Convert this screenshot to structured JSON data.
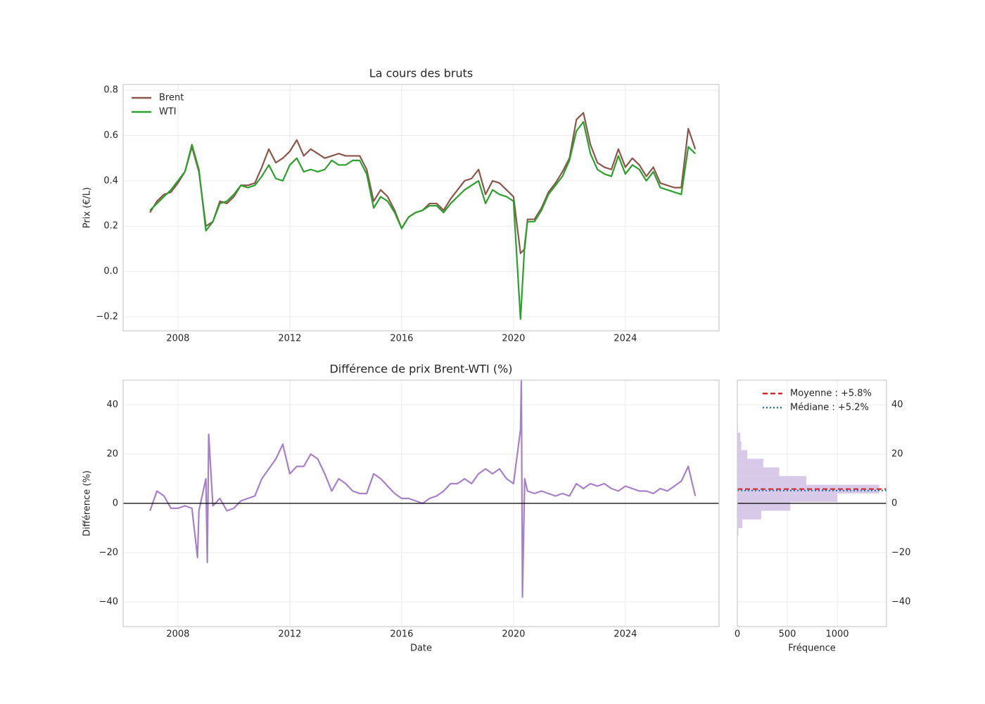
{
  "chart_data": [
    {
      "type": "line",
      "title": "La cours des bruts",
      "ylabel": "Prix (€/L)",
      "x": [
        2007,
        2007.25,
        2007.5,
        2007.75,
        2008,
        2008.25,
        2008.5,
        2008.75,
        2009,
        2009.25,
        2009.5,
        2009.75,
        2010,
        2010.25,
        2010.5,
        2010.75,
        2011,
        2011.25,
        2011.5,
        2011.75,
        2012,
        2012.25,
        2012.5,
        2012.75,
        2013,
        2013.25,
        2013.5,
        2013.75,
        2014,
        2014.25,
        2014.5,
        2014.75,
        2015,
        2015.25,
        2015.5,
        2015.75,
        2016,
        2016.25,
        2016.5,
        2016.75,
        2017,
        2017.25,
        2017.5,
        2017.75,
        2018,
        2018.25,
        2018.5,
        2018.75,
        2019,
        2019.25,
        2019.5,
        2019.75,
        2020,
        2020.25,
        2020.4,
        2020.5,
        2020.75,
        2021,
        2021.25,
        2021.5,
        2021.75,
        2022,
        2022.25,
        2022.5,
        2022.75,
        2023,
        2023.25,
        2023.5,
        2023.75,
        2024,
        2024.25,
        2024.5,
        2024.75,
        2025,
        2025.25,
        2025.5,
        2025.75,
        2026,
        2026.25,
        2026.5
      ],
      "series": [
        {
          "name": "Brent",
          "color": "#8c564b",
          "values": [
            0.26,
            0.31,
            0.34,
            0.35,
            0.39,
            0.44,
            0.55,
            0.44,
            0.2,
            0.22,
            0.31,
            0.3,
            0.33,
            0.38,
            0.38,
            0.39,
            0.46,
            0.54,
            0.48,
            0.5,
            0.53,
            0.58,
            0.51,
            0.54,
            0.52,
            0.5,
            0.51,
            0.52,
            0.51,
            0.51,
            0.51,
            0.45,
            0.31,
            0.36,
            0.33,
            0.27,
            0.19,
            0.24,
            0.26,
            0.27,
            0.3,
            0.3,
            0.27,
            0.32,
            0.36,
            0.4,
            0.41,
            0.45,
            0.34,
            0.4,
            0.39,
            0.36,
            0.33,
            0.08,
            0.1,
            0.23,
            0.23,
            0.28,
            0.35,
            0.39,
            0.44,
            0.5,
            0.67,
            0.7,
            0.56,
            0.48,
            0.46,
            0.45,
            0.54,
            0.46,
            0.5,
            0.47,
            0.42,
            0.46,
            0.39,
            0.38,
            0.37,
            0.37,
            0.63,
            0.54
          ]
        },
        {
          "name": "WTI",
          "color": "#2ca02c",
          "values": [
            0.27,
            0.3,
            0.33,
            0.36,
            0.4,
            0.44,
            0.56,
            0.45,
            0.18,
            0.22,
            0.3,
            0.31,
            0.34,
            0.38,
            0.37,
            0.38,
            0.42,
            0.47,
            0.41,
            0.4,
            0.47,
            0.5,
            0.44,
            0.45,
            0.44,
            0.45,
            0.49,
            0.47,
            0.47,
            0.49,
            0.49,
            0.43,
            0.28,
            0.33,
            0.31,
            0.26,
            0.19,
            0.24,
            0.26,
            0.27,
            0.29,
            0.29,
            0.26,
            0.3,
            0.33,
            0.36,
            0.38,
            0.4,
            0.3,
            0.36,
            0.34,
            0.33,
            0.31,
            -0.21,
            0.12,
            0.22,
            0.22,
            0.27,
            0.34,
            0.38,
            0.42,
            0.49,
            0.62,
            0.66,
            0.52,
            0.45,
            0.43,
            0.42,
            0.51,
            0.43,
            0.47,
            0.45,
            0.4,
            0.44,
            0.37,
            0.36,
            0.35,
            0.34,
            0.55,
            0.52
          ]
        }
      ],
      "xlim": [
        2006.04,
        2027.35
      ],
      "xticks": [
        2008,
        2012,
        2016,
        2020,
        2024
      ],
      "ylim": [
        -0.262,
        0.825
      ],
      "yticks": [
        {
          "value": -0.2,
          "label": "−0.2"
        },
        {
          "value": 0,
          "label": "0.0"
        },
        0.2,
        0.4,
        0.6,
        0.8
      ],
      "grid": true,
      "legend": "upper left"
    },
    {
      "type": "line",
      "title": "Différence de prix Brent-WTI (%)",
      "xlabel": "Date",
      "ylabel": "Différence (%)",
      "x": [
        2007,
        2007.25,
        2007.5,
        2007.75,
        2008,
        2008.25,
        2008.5,
        2008.7,
        2008.75,
        2009,
        2009.05,
        2009.1,
        2009.25,
        2009.5,
        2009.75,
        2010,
        2010.25,
        2010.5,
        2010.75,
        2011,
        2011.25,
        2011.5,
        2011.75,
        2012,
        2012.25,
        2012.5,
        2012.75,
        2013,
        2013.25,
        2013.5,
        2013.75,
        2014,
        2014.25,
        2014.5,
        2014.75,
        2015,
        2015.25,
        2015.5,
        2015.75,
        2016,
        2016.25,
        2016.5,
        2016.75,
        2017,
        2017.25,
        2017.5,
        2017.75,
        2018,
        2018.25,
        2018.5,
        2018.75,
        2019,
        2019.25,
        2019.5,
        2019.75,
        2020,
        2020.25,
        2020.28,
        2020.32,
        2020.4,
        2020.5,
        2020.75,
        2021,
        2021.25,
        2021.5,
        2021.75,
        2022,
        2022.25,
        2022.5,
        2022.75,
        2023,
        2023.25,
        2023.5,
        2023.75,
        2024,
        2024.25,
        2024.5,
        2024.75,
        2025,
        2025.25,
        2025.5,
        2025.75,
        2026,
        2026.25,
        2026.5
      ],
      "series": [
        {
          "name": "Différence",
          "color": "#a680c9",
          "values": [
            -3,
            5,
            3,
            -2,
            -2,
            -1,
            -2,
            -22,
            -3,
            10,
            -24,
            28,
            -1,
            2,
            -3,
            -2,
            1,
            2,
            3,
            10,
            14,
            18,
            24,
            12,
            15,
            15,
            20,
            18,
            12,
            5,
            10,
            8,
            5,
            4,
            4,
            12,
            10,
            7,
            4,
            2,
            2,
            1,
            0,
            2,
            3,
            5,
            8,
            8,
            10,
            8,
            12,
            14,
            12,
            14,
            10,
            8,
            30,
            50,
            -38,
            10,
            5,
            4,
            5,
            4,
            3,
            4,
            3,
            8,
            6,
            8,
            7,
            8,
            6,
            5,
            7,
            6,
            5,
            5,
            4,
            6,
            5,
            7,
            9,
            15,
            3
          ]
        }
      ],
      "xlim": [
        2006.04,
        2027.35
      ],
      "xticks": [
        2008,
        2012,
        2016,
        2020,
        2024
      ],
      "ylim": [
        -50,
        50
      ],
      "yticks": [
        {
          "value": -40,
          "label": "−40"
        },
        {
          "value": -20,
          "label": "−20"
        },
        0,
        20,
        40
      ],
      "hline": 0,
      "grid": true
    },
    {
      "type": "histogram",
      "orientation": "horizontal",
      "xlabel": "Fréquence",
      "color": "#d9c9e8",
      "bins": [
        -38.2,
        -34.68,
        -31.16,
        -27.64,
        -24.12,
        -20.6,
        -17.08,
        -13.56,
        -10.04,
        -6.52,
        -3.0,
        0.52,
        4.04,
        7.56,
        11.08,
        14.6,
        18.12,
        21.64,
        25.16,
        28.68,
        32.2,
        35.72,
        39.24,
        42.76,
        46.28,
        49.8
      ],
      "counts": [
        1,
        0,
        0,
        0,
        1,
        2,
        3,
        10,
        50,
        240,
        530,
        1000,
        1420,
        690,
        420,
        260,
        100,
        40,
        30,
        5,
        2,
        1,
        1,
        0,
        1
      ],
      "reference_lines": [
        {
          "name": "Moyenne : +5.8%",
          "value": 5.8,
          "color": "#d62728",
          "style": "dashed"
        },
        {
          "name": "Médiane : +5.2%",
          "value": 5.2,
          "color": "#1f77b4",
          "style": "dotted"
        }
      ],
      "xlim": [
        0,
        1493
      ],
      "xticks": [
        0,
        500,
        1000
      ],
      "ylim": [
        -50,
        50
      ],
      "yticks": [
        {
          "value": -40,
          "label": "−40"
        },
        {
          "value": -20,
          "label": "−20"
        },
        0,
        20,
        40
      ],
      "yaxis_position": "right",
      "hline": 0,
      "grid": true,
      "legend": "upper right"
    }
  ]
}
